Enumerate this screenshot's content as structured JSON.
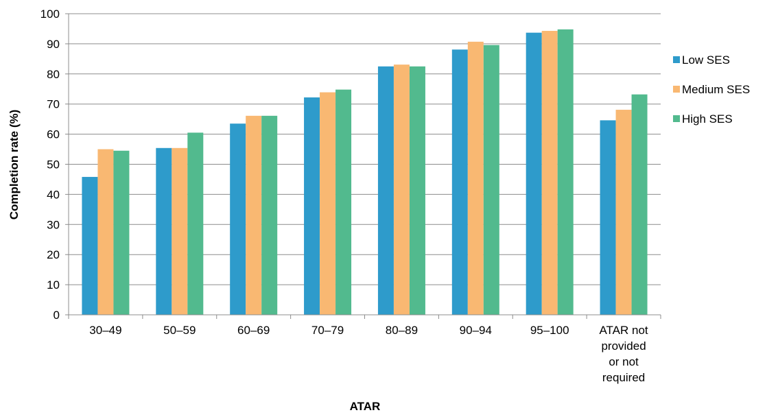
{
  "chart_data": {
    "type": "bar",
    "title": "",
    "xlabel": "ATAR",
    "ylabel": "Completion rate (%)",
    "ylim": [
      0,
      100
    ],
    "yticks": [
      0,
      10,
      20,
      30,
      40,
      50,
      60,
      70,
      80,
      90,
      100
    ],
    "grid": true,
    "legend_position": "right",
    "categories": [
      [
        "30–49"
      ],
      [
        "50–59"
      ],
      [
        "60–69"
      ],
      [
        "70–79"
      ],
      [
        "80–89"
      ],
      [
        "90–94"
      ],
      [
        "95–100"
      ],
      [
        "ATAR not",
        "provided",
        "or not",
        "required"
      ]
    ],
    "series": [
      {
        "name": "Low SES",
        "color": "#2E9BCB",
        "values": [
          45.8,
          55.4,
          63.5,
          72.2,
          82.5,
          88.1,
          93.7,
          64.6
        ]
      },
      {
        "name": "Medium SES",
        "color": "#F9B872",
        "values": [
          55.0,
          55.4,
          66.1,
          73.9,
          83.1,
          90.7,
          94.3,
          68.1
        ]
      },
      {
        "name": "High SES",
        "color": "#52BA8E",
        "values": [
          54.5,
          60.5,
          66.1,
          74.8,
          82.5,
          89.6,
          94.8,
          73.2
        ]
      }
    ]
  }
}
